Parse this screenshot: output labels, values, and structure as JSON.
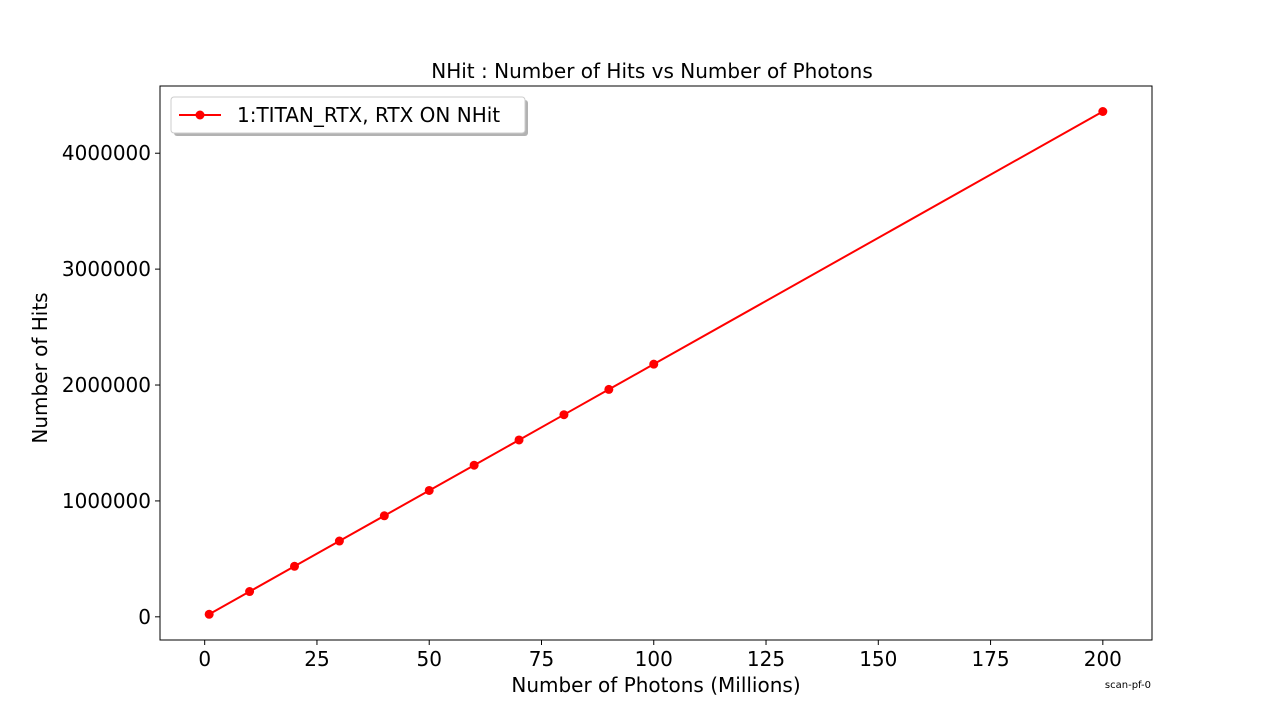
{
  "chart_data": {
    "type": "line",
    "title": "NHit : Number of Hits vs Number of Photons",
    "xlabel": "Number of Photons (Millions)",
    "ylabel": "Number of Hits",
    "xlim": [
      -9.95,
      210.95
    ],
    "ylim": [
      -200000,
      4580000
    ],
    "x_ticks": [
      0,
      25,
      50,
      75,
      100,
      125,
      150,
      175,
      200
    ],
    "y_ticks": [
      0,
      1000000,
      2000000,
      3000000,
      4000000
    ],
    "grid": false,
    "legend_position": "upper-left",
    "footer_tag": "scan-pf-0",
    "series": [
      {
        "name": "1:TITAN_RTX, RTX ON NHit",
        "color": "#ff0000",
        "marker": "circle",
        "x": [
          1,
          10,
          20,
          30,
          40,
          50,
          60,
          70,
          80,
          90,
          100,
          200
        ],
        "y": [
          21800,
          218000,
          436000,
          654000,
          872000,
          1090000,
          1308000,
          1526000,
          1744000,
          1962000,
          2180000,
          4360000
        ]
      }
    ]
  }
}
